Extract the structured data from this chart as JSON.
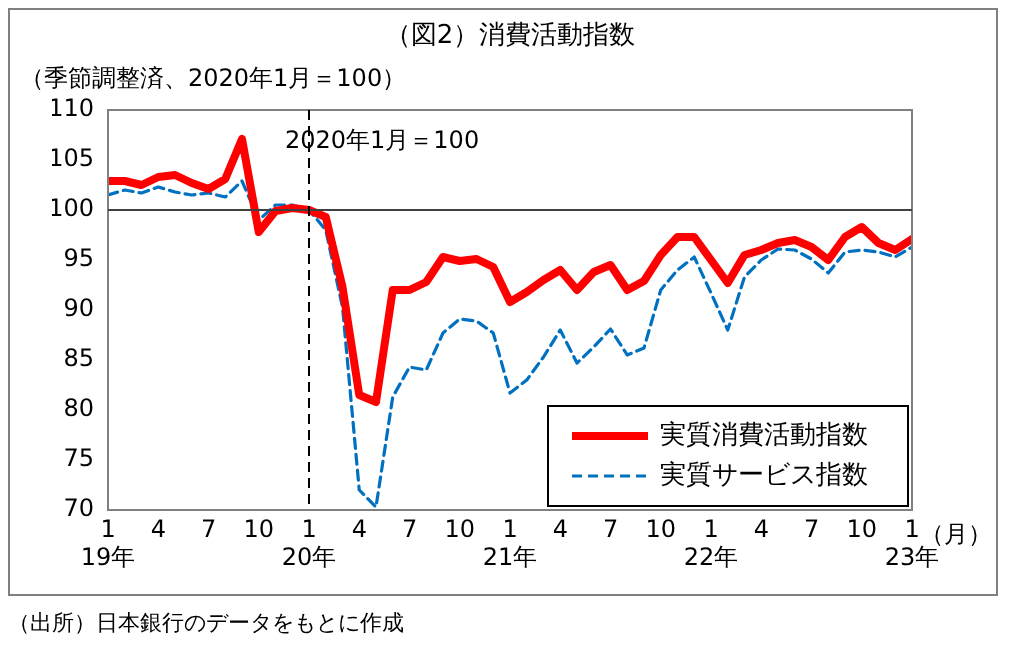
{
  "chart_data": {
    "type": "line",
    "title": "（図2）消費活動指数",
    "subtitle": "（季節調整済、2020年1月＝100）",
    "xlabel": "（月）",
    "annotations": [
      "（出所）日本銀行のデータをもとに作成"
    ],
    "x": [
      "2019-01",
      "2019-02",
      "2019-03",
      "2019-04",
      "2019-05",
      "2019-06",
      "2019-07",
      "2019-08",
      "2019-09",
      "2019-10",
      "2019-11",
      "2019-12",
      "2020-01",
      "2020-02",
      "2020-03",
      "2020-04",
      "2020-05",
      "2020-06",
      "2020-07",
      "2020-08",
      "2020-09",
      "2020-10",
      "2020-11",
      "2020-12",
      "2021-01",
      "2021-02",
      "2021-03",
      "2021-04",
      "2021-05",
      "2021-06",
      "2021-07",
      "2021-08",
      "2021-09",
      "2021-10",
      "2021-11",
      "2021-12",
      "2022-01",
      "2022-02",
      "2022-03",
      "2022-04",
      "2022-05",
      "2022-06",
      "2022-07",
      "2022-08",
      "2022-09",
      "2022-10",
      "2022-11",
      "2022-12",
      "2023-01"
    ],
    "series": [
      {
        "name": "実質消費活動指数",
        "color": "#ff0000",
        "line_style": "solid",
        "values": [
          102.9,
          102.9,
          102.5,
          103.3,
          103.5,
          102.7,
          102.1,
          103.1,
          107.1,
          97.8,
          99.9,
          100.2,
          100,
          99.3,
          92.3,
          81.5,
          80.8,
          92,
          92,
          92.8,
          95.3,
          94.9,
          95.1,
          94.3,
          90.8,
          91.8,
          93,
          94,
          92,
          93.8,
          94.5,
          92,
          92.9,
          95.5,
          97.3,
          97.3,
          95,
          92.7,
          95.5,
          96,
          96.7,
          97,
          96.3,
          95,
          97.3,
          98.3,
          96.7,
          96,
          97.1
        ]
      },
      {
        "name": "実質サービス指数",
        "color": "#0070c0",
        "line_style": "dashed",
        "values": [
          101.5,
          102,
          101.7,
          102.3,
          101.8,
          101.5,
          101.7,
          101.3,
          102.9,
          99,
          100.5,
          100.5,
          100,
          98,
          90.3,
          72,
          70.3,
          81.3,
          84.3,
          84,
          87.7,
          89.1,
          88.9,
          87.7,
          81.7,
          83,
          85.3,
          88,
          84.7,
          86.3,
          88.1,
          85.5,
          86.2,
          92,
          94,
          95.3,
          91.7,
          88,
          93.3,
          95,
          96.1,
          96,
          95.1,
          93.7,
          95.8,
          96,
          95.8,
          95.3,
          96.3
        ]
      }
    ],
    "xlim": [
      "2019-01",
      "2023-01"
    ],
    "xticks": [
      {
        "value": "2019-01",
        "label": "1\n19年"
      },
      {
        "value": "2019-04",
        "label": "4"
      },
      {
        "value": "2019-07",
        "label": "7"
      },
      {
        "value": "2019-10",
        "label": "10"
      },
      {
        "value": "2020-01",
        "label": "1\n20年"
      },
      {
        "value": "2020-04",
        "label": "4"
      },
      {
        "value": "2020-07",
        "label": "7"
      },
      {
        "value": "2020-10",
        "label": "10"
      },
      {
        "value": "2021-01",
        "label": "1\n21年"
      },
      {
        "value": "2021-04",
        "label": "4"
      },
      {
        "value": "2021-07",
        "label": "7"
      },
      {
        "value": "2021-10",
        "label": "10"
      },
      {
        "value": "2022-01",
        "label": "1\n22年"
      },
      {
        "value": "2022-04",
        "label": "4"
      },
      {
        "value": "2022-07",
        "label": "7"
      },
      {
        "value": "2022-10",
        "label": "10"
      },
      {
        "value": "2023-01",
        "label": "1\n23年"
      }
    ],
    "ylim": [
      70,
      110
    ],
    "yticks": [
      70,
      75,
      80,
      85,
      90,
      95,
      100,
      105,
      110
    ],
    "ref_lines": [
      {
        "axis": "y",
        "value": 100,
        "label": null,
        "color": "#404040",
        "line_style": "solid"
      },
      {
        "axis": "x",
        "value": "2020-01",
        "label": "2020年1月＝100",
        "color": "#000000",
        "line_style": "dashed"
      }
    ],
    "grid": false,
    "legend": "bottom right",
    "marker": "none"
  }
}
